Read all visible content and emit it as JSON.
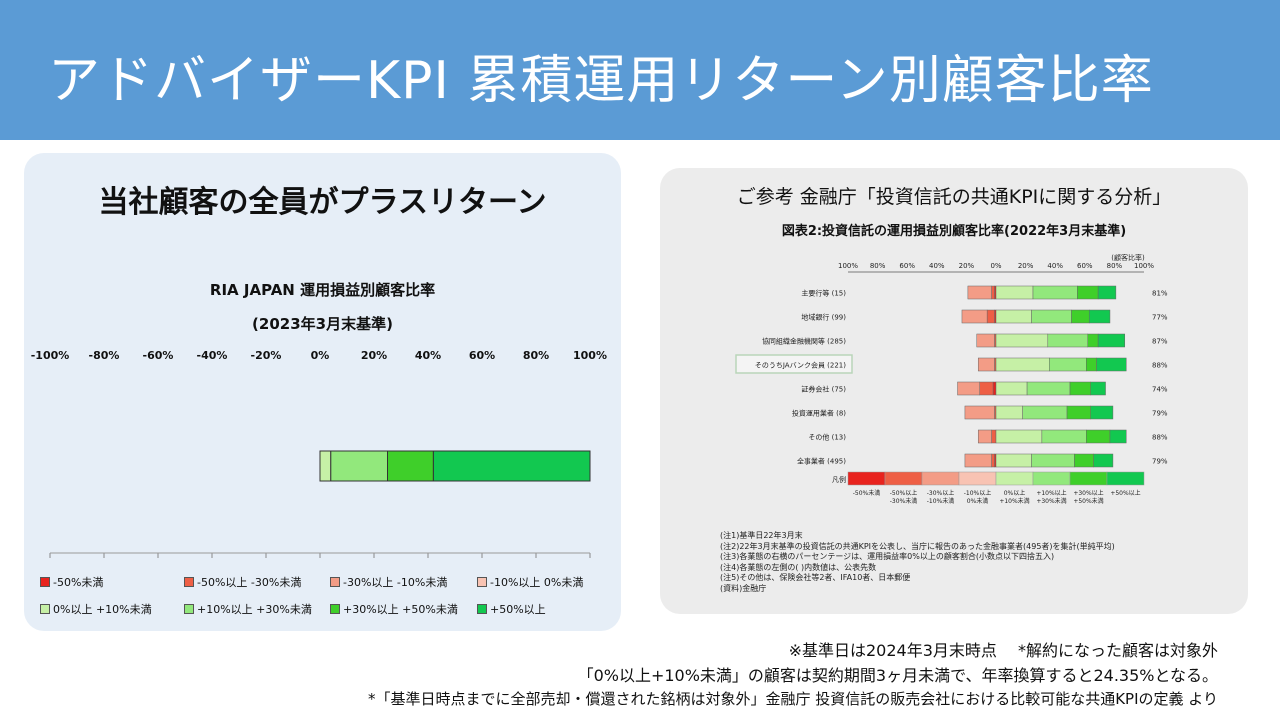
{
  "header": {
    "title": "アドバイザーKPI 累積運用リターン別顧客比率"
  },
  "left_panel": {
    "headline": "当社顧客の全員がプラスリターン",
    "chart_title": "RIA JAPAN 運用損益別顧客比率",
    "chart_subtitle": "(2023年3月末基準)"
  },
  "right_panel": {
    "title": "ご参考 金融庁「投資信託の共通KPIに関する分析」",
    "figure_title": "図表2:投資信託の運用損益別顧客比率(2022年3月末基準)",
    "notes": [
      "(注1)基準日22年3月末",
      "(注2)22年3月末基準の投資信託の共通KPIを公表し、当庁に報告のあった金融事業者(495者)を集計(単純平均)",
      "(注3)各業態の右横のパーセンテージは、運用損益率0%以上の顧客割合(小数点以下四捨五入)",
      "(注4)各業態の左側の( )内数値は、公表先数",
      "(注5)その他は、保険会社等2者、IFA10者、日本郵便",
      "(資料)金融庁"
    ]
  },
  "footer": {
    "line1": "※基準日は2024年3月末時点　 *解約になった顧客は対象外",
    "line2": "「0%以上+10%未満」の顧客は契約期間3ヶ月未満で、年率換算すると24.35%となる。",
    "line3": "*「基準日時点までに全部売却・償還された銘柄は対象外」金融庁 投資信託の販売会社における比較可能な共通KPIの定義 より"
  },
  "colors": {
    "header_bg": "#5b9bd5",
    "categories": [
      "#e8231e",
      "#ee5f45",
      "#f39c86",
      "#f8c3b3",
      "#c6f0a6",
      "#92e87c",
      "#3fcf2a",
      "#12c850"
    ]
  },
  "chart_data": [
    {
      "type": "bar",
      "orientation": "horizontal",
      "stacked": true,
      "title": "RIA JAPAN 運用損益別顧客比率",
      "subtitle": "(2023年3月末基準)",
      "x_ticks": [
        "-100%",
        "-80%",
        "-60%",
        "-40%",
        "-20%",
        "0%",
        "20%",
        "40%",
        "60%",
        "80%",
        "100%"
      ],
      "xlim": [
        -100,
        100
      ],
      "categories": [
        ""
      ],
      "series": [
        {
          "name": "-50%未満",
          "values": [
            0
          ]
        },
        {
          "name": "-50%以上 -30%未満",
          "values": [
            0
          ]
        },
        {
          "name": "-30%以上 -10%未満",
          "values": [
            0
          ]
        },
        {
          "name": "-10%以上 0%未満",
          "values": [
            0
          ]
        },
        {
          "name": "0%以上 +10%未満",
          "values": [
            4
          ]
        },
        {
          "name": "+10%以上 +30%未満",
          "values": [
            21
          ]
        },
        {
          "name": "+30%以上 +50%未満",
          "values": [
            17
          ]
        },
        {
          "name": "+50%以上",
          "values": [
            58
          ]
        }
      ],
      "legend_position": "bottom"
    },
    {
      "type": "bar",
      "orientation": "horizontal",
      "stacked": true,
      "title": "図表2:投資信託の運用損益別顧客比率(2022年3月末基準)",
      "x_ticks": [
        "100%",
        "80%",
        "60%",
        "40%",
        "20%",
        "0%",
        "20%",
        "40%",
        "60%",
        "80%",
        "100%"
      ],
      "axis_note": "(顧客比率)",
      "xlim": [
        -100,
        100
      ],
      "categories": [
        "主要行等 (15)",
        "地域銀行 (99)",
        "協同組織金融機関等 (285)",
        "そのうちJAバンク会員 (221)",
        "証券会社 (75)",
        "投資運用業者 (8)",
        "その他 (13)",
        "全事業者 (495)"
      ],
      "right_labels": [
        "81%",
        "77%",
        "87%",
        "88%",
        "74%",
        "79%",
        "88%",
        "79%"
      ],
      "series": [
        {
          "name": "-50%未満",
          "values": [
            -1,
            -1,
            0,
            0,
            -2,
            0,
            0,
            -1
          ]
        },
        {
          "name": "-50%以上 -30%未満",
          "values": [
            -2,
            -5,
            -1,
            -1,
            -9,
            -1,
            -3,
            -2
          ]
        },
        {
          "name": "-30%以上 -10%未満",
          "values": [
            -16,
            -17,
            -12,
            -11,
            -15,
            -20,
            -9,
            -18
          ]
        },
        {
          "name": "-10%以上 0%未満",
          "values": [
            0,
            0,
            0,
            0,
            0,
            0,
            0,
            0
          ]
        },
        {
          "name": "0%以上 +10%未満",
          "values": [
            25,
            24,
            35,
            36,
            21,
            18,
            31,
            24
          ]
        },
        {
          "name": "+10%以上 +30%未満",
          "values": [
            30,
            27,
            27,
            25,
            29,
            30,
            30,
            29
          ]
        },
        {
          "name": "+30%以上 +50%未満",
          "values": [
            14,
            12,
            7,
            7,
            14,
            16,
            16,
            13
          ]
        },
        {
          "name": "+50%以上",
          "values": [
            12,
            14,
            18,
            20,
            10,
            15,
            11,
            13
          ]
        }
      ],
      "legend_label": "凡例",
      "legend_labels": [
        [
          "-50%未満"
        ],
        [
          "-50%以上",
          "-30%未満"
        ],
        [
          "-30%以上",
          "-10%未満"
        ],
        [
          "-10%以上",
          "0%未満"
        ],
        [
          "0%以上",
          "+10%未満"
        ],
        [
          "+10%以上",
          "+30%未満"
        ],
        [
          "+30%以上",
          "+50%未満"
        ],
        [
          "+50%以上"
        ]
      ]
    }
  ]
}
